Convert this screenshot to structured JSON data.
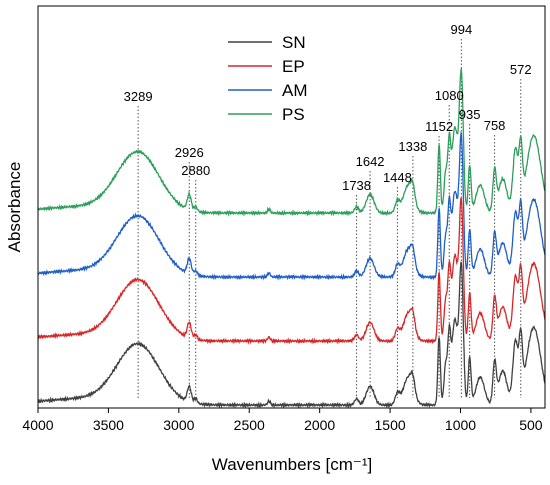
{
  "chart_data": {
    "type": "line",
    "xlabel": "Wavenumbers [cm⁻¹]",
    "ylabel": "Absorbance",
    "xlim": [
      4000,
      400
    ],
    "x_reversed": true,
    "xticks": [
      4000,
      3500,
      3000,
      2500,
      2000,
      1500,
      1000,
      500
    ],
    "yticks": [],
    "grid": false,
    "legend_position": "top-center",
    "series": [
      {
        "name": "SN",
        "color": "#404040",
        "offset": 0
      },
      {
        "name": "EP",
        "color": "#d62728",
        "offset": 1
      },
      {
        "name": "AM",
        "color": "#1f5fc8",
        "offset": 2
      },
      {
        "name": "PS",
        "color": "#2e9e5b",
        "offset": 3
      }
    ],
    "peaks": [
      {
        "x": 3289,
        "label": "3289"
      },
      {
        "x": 2926,
        "label": "2926"
      },
      {
        "x": 2880,
        "label": "2880"
      },
      {
        "x": 1738,
        "label": "1738"
      },
      {
        "x": 1642,
        "label": "1642"
      },
      {
        "x": 1448,
        "label": "1448"
      },
      {
        "x": 1338,
        "label": "1338"
      },
      {
        "x": 1152,
        "label": "1152"
      },
      {
        "x": 1080,
        "label": "1080"
      },
      {
        "x": 994,
        "label": "994"
      },
      {
        "x": 935,
        "label": "935"
      },
      {
        "x": 758,
        "label": "758"
      },
      {
        "x": 572,
        "label": "572"
      }
    ]
  }
}
